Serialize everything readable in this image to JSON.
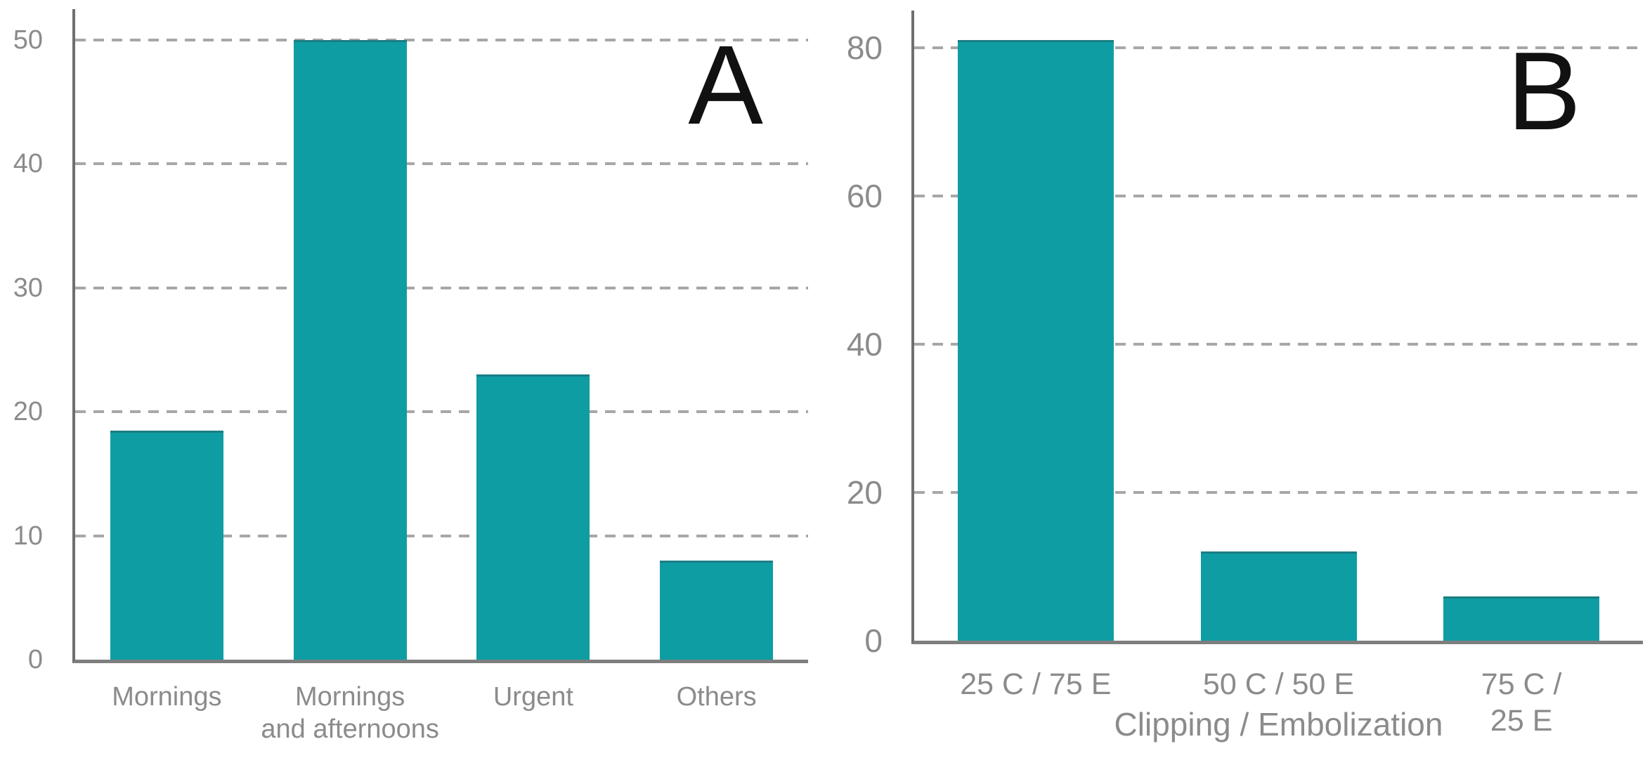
{
  "figure": {
    "background": "#ffffff",
    "panel_letters": [
      "A",
      "B"
    ]
  },
  "colors": {
    "bar": "#0f9da4",
    "bar_top_edge": "rgba(44,76,80,0.38)",
    "gridline": "#a7a7a7",
    "y_axis": "#6f6f6f",
    "x_axis": "#7e7e7e",
    "tick_label": "#8b8b8b",
    "category_label": "#8b8b8b",
    "panel_letter": "#111111"
  },
  "chart_data": [
    {
      "type": "bar",
      "panel_label": "A",
      "categories": [
        "Mornings",
        "Mornings\nand afternoons",
        "Urgent",
        "Others"
      ],
      "values": [
        18.5,
        50,
        23,
        8
      ],
      "title": "",
      "xlabel": "",
      "ylabel": "",
      "y_ticks": [
        0,
        10,
        20,
        30,
        40,
        50
      ],
      "ylim": [
        0,
        52.5
      ],
      "grid": "horizontal-dashed",
      "legend_position": "none",
      "bar_color": "#0f9da4"
    },
    {
      "type": "bar",
      "panel_label": "B",
      "categories": [
        "25 C / 75 E",
        "50 C / 50 E",
        "75 C / 25 E"
      ],
      "values": [
        81,
        12,
        6
      ],
      "title": "",
      "xlabel": "Clipping / Embolization",
      "ylabel": "",
      "y_ticks": [
        0,
        20,
        40,
        60,
        80
      ],
      "ylim": [
        0,
        85
      ],
      "grid": "horizontal-dashed",
      "legend_position": "none",
      "bar_color": "#0f9da4"
    }
  ]
}
